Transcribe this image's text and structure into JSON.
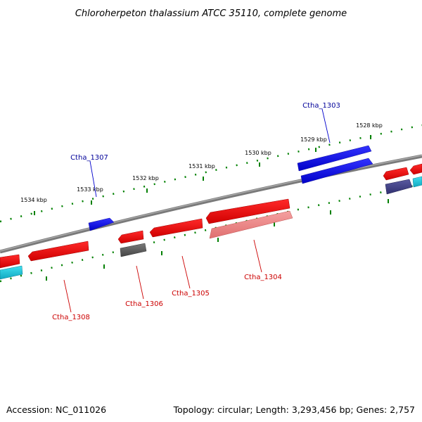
{
  "title": "Chloroherpeton thalassium ATCC 35110, complete genome",
  "footer": {
    "accession": "Accession: NC_011026",
    "summary": "Topology: circular; Length: 3,293,456 bp; Genes: 2,757"
  },
  "ticks": [
    "1528 kbp",
    "1529 kbp",
    "1530 kbp",
    "1531 kbp",
    "1532 kbp",
    "1533 kbp",
    "1534 kbp"
  ],
  "genes": {
    "ctha_1303": "Ctha_1303",
    "ctha_1304": "Ctha_1304",
    "ctha_1305": "Ctha_1305",
    "ctha_1306": "Ctha_1306",
    "ctha_1307": "Ctha_1307",
    "ctha_1308": "Ctha_1308"
  },
  "colors": {
    "forward_gene": "#0000ee",
    "reverse_gene": "#ee0000",
    "rna_gene": "#f08080",
    "pseudo_gene": "#555555",
    "hypothetical_gene": "#20c8d8",
    "other_gene": "#404080",
    "backbone": "#808080",
    "ruler": "#008000",
    "forward_label": "#000099",
    "reverse_label": "#cc0000"
  }
}
